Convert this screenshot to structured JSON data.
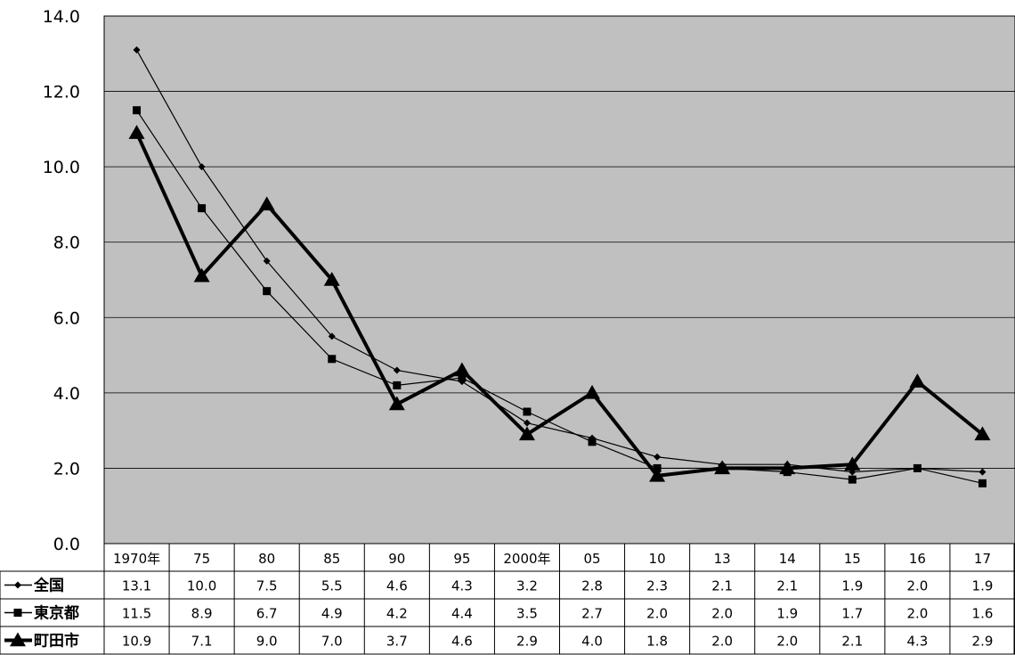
{
  "chart_data": {
    "type": "line",
    "title": "",
    "xlabel": "",
    "ylabel": "",
    "categories": [
      "1970年",
      "75",
      "80",
      "85",
      "90",
      "95",
      "2000年",
      "05",
      "10",
      "13",
      "14",
      "15",
      "16",
      "17"
    ],
    "ylim": [
      0,
      14
    ],
    "yticks": [
      "0.0",
      "2.0",
      "4.0",
      "6.0",
      "8.0",
      "10.0",
      "12.0",
      "14.0"
    ],
    "grid": true,
    "legend": "data-table-left",
    "plot_background": "#c0c0c0",
    "series": [
      {
        "name": "全国",
        "marker": "diamond",
        "line_weight": "thin",
        "values": [
          13.1,
          10.0,
          7.5,
          5.5,
          4.6,
          4.3,
          3.2,
          2.8,
          2.3,
          2.1,
          2.1,
          1.9,
          2.0,
          1.9
        ],
        "labels": [
          "13.1",
          "10.0",
          "7.5",
          "5.5",
          "4.6",
          "4.3",
          "3.2",
          "2.8",
          "2.3",
          "2.1",
          "2.1",
          "1.9",
          "2.0",
          "1.9"
        ]
      },
      {
        "name": "東京都",
        "marker": "square",
        "line_weight": "thin",
        "values": [
          11.5,
          8.9,
          6.7,
          4.9,
          4.2,
          4.4,
          3.5,
          2.7,
          2.0,
          2.0,
          1.9,
          1.7,
          2.0,
          1.6
        ],
        "labels": [
          "11.5",
          "8.9",
          "6.7",
          "4.9",
          "4.2",
          "4.4",
          "3.5",
          "2.7",
          "2.0",
          "2.0",
          "1.9",
          "1.7",
          "2.0",
          "1.6"
        ]
      },
      {
        "name": "町田市",
        "marker": "triangle",
        "line_weight": "thick",
        "values": [
          10.9,
          7.1,
          9.0,
          7.0,
          3.7,
          4.6,
          2.9,
          4.0,
          1.8,
          2.0,
          2.0,
          2.1,
          4.3,
          2.9
        ],
        "labels": [
          "10.9",
          "7.1",
          "9.0",
          "7.0",
          "3.7",
          "4.6",
          "2.9",
          "4.0",
          "1.8",
          "2.0",
          "2.0",
          "2.1",
          "4.3",
          "2.9"
        ]
      }
    ]
  }
}
